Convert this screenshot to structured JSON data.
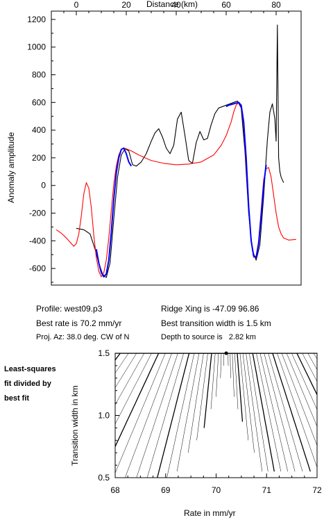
{
  "chart_data": [
    {
      "type": "line",
      "xlabel": "Distance (km)",
      "ylabel": "Anomaly amplitude",
      "xlim": [
        -10,
        90
      ],
      "ylim": [
        -720,
        1260
      ],
      "x_ticks": [
        "0",
        "20",
        "40",
        "60",
        "80"
      ],
      "y_ticks": [
        "-600",
        "-400",
        "-200",
        "0",
        "200",
        "400",
        "600",
        "800",
        "1000",
        "1200"
      ],
      "series": [
        {
          "color": "#000000",
          "x": [
            0,
            3,
            5.5,
            7.5,
            9,
            10.5,
            12,
            13.5,
            15,
            16.5,
            18,
            19.5,
            21,
            22.5,
            24,
            26,
            28,
            30,
            31.5,
            33,
            34.5,
            36,
            37.5,
            39,
            40.5,
            42,
            43.5,
            45,
            46.5,
            48,
            49.5,
            51,
            52.5,
            54,
            55.5,
            57,
            58.5,
            60,
            61.5,
            63,
            64.5,
            66,
            67.5,
            69,
            70.5,
            72,
            73.5,
            75,
            76.5,
            77.5,
            78.5,
            79.5,
            80,
            80.5,
            81,
            81.5,
            82,
            82.5,
            83
          ],
          "y": [
            -310,
            -320,
            -350,
            -460,
            -560,
            -640,
            -665,
            -560,
            -240,
            60,
            220,
            265,
            250,
            150,
            140,
            170,
            230,
            320,
            380,
            410,
            350,
            270,
            230,
            290,
            480,
            530,
            360,
            180,
            160,
            310,
            390,
            330,
            340,
            440,
            520,
            560,
            570,
            580,
            590,
            600,
            610,
            560,
            250,
            -200,
            -470,
            -540,
            -430,
            -80,
            330,
            530,
            590,
            480,
            320,
            1160,
            200,
            100,
            60,
            40,
            20
          ]
        },
        {
          "color": "#ff0000",
          "x": [
            -8,
            -6,
            -4,
            -2,
            -1,
            0,
            1,
            2,
            3,
            4,
            5,
            6,
            7,
            8,
            9,
            10,
            11,
            12,
            13,
            14,
            15,
            16,
            17,
            18,
            19,
            20,
            22,
            25,
            30,
            35,
            40,
            45,
            50,
            55,
            58,
            60,
            62,
            63,
            64,
            65,
            66,
            67,
            68,
            69,
            70,
            71,
            72,
            73,
            74,
            75,
            76,
            77,
            78,
            79,
            80,
            81,
            82,
            83,
            85,
            88
          ],
          "y": [
            -320,
            -345,
            -380,
            -420,
            -440,
            -420,
            -350,
            -220,
            -60,
            20,
            -20,
            -160,
            -360,
            -520,
            -620,
            -660,
            -630,
            -540,
            -380,
            -180,
            10,
            140,
            220,
            260,
            270,
            265,
            250,
            220,
            180,
            160,
            150,
            155,
            170,
            220,
            290,
            360,
            460,
            530,
            580,
            600,
            570,
            430,
            140,
            -160,
            -400,
            -520,
            -510,
            -400,
            -180,
            40,
            120,
            130,
            60,
            -70,
            -200,
            -300,
            -350,
            -380,
            -395,
            -390
          ]
        },
        {
          "color": "#0000ff",
          "x": [
            8,
            9,
            10,
            11,
            12,
            13,
            14,
            15,
            16,
            17,
            18,
            19,
            20,
            21,
            22,
            60,
            61,
            62,
            63,
            64,
            65,
            66,
            67,
            68,
            69,
            70,
            71,
            72,
            73,
            74,
            75,
            76
          ],
          "y": [
            -460,
            -560,
            -630,
            -660,
            -640,
            -540,
            -340,
            -100,
            90,
            200,
            260,
            270,
            230,
            170,
            140,
            570,
            580,
            585,
            590,
            595,
            600,
            580,
            460,
            200,
            -150,
            -400,
            -510,
            -520,
            -420,
            -220,
            0,
            150
          ],
          "gaps_after_index": [
            14
          ]
        }
      ]
    },
    {
      "type": "contour",
      "xlabel": "Rate in mm/yr",
      "ylabel": "Transition width in km",
      "xlim": [
        68,
        72
      ],
      "ylim": [
        0.5,
        1.5
      ],
      "x_ticks": [
        "68",
        "69",
        "70",
        "71",
        "72"
      ],
      "y_ticks": [
        "0.5",
        "1.0",
        "1.5"
      ],
      "best_fit": {
        "rate": 70.2,
        "width": 1.5
      }
    }
  ],
  "info": {
    "profile": "Profile: west09.p3",
    "rate": "Best rate is 70.2 mm/yr",
    "azimuth": "Proj. Az: 38.0 deg. CW of N",
    "ridge": "Ridge Xing is -47.09 96.86",
    "width": "Best transition width is 1.5 km",
    "depth": "Depth to source is   2.82 km"
  },
  "caption": [
    "Least-squares",
    "fit divided by",
    "best fit"
  ]
}
